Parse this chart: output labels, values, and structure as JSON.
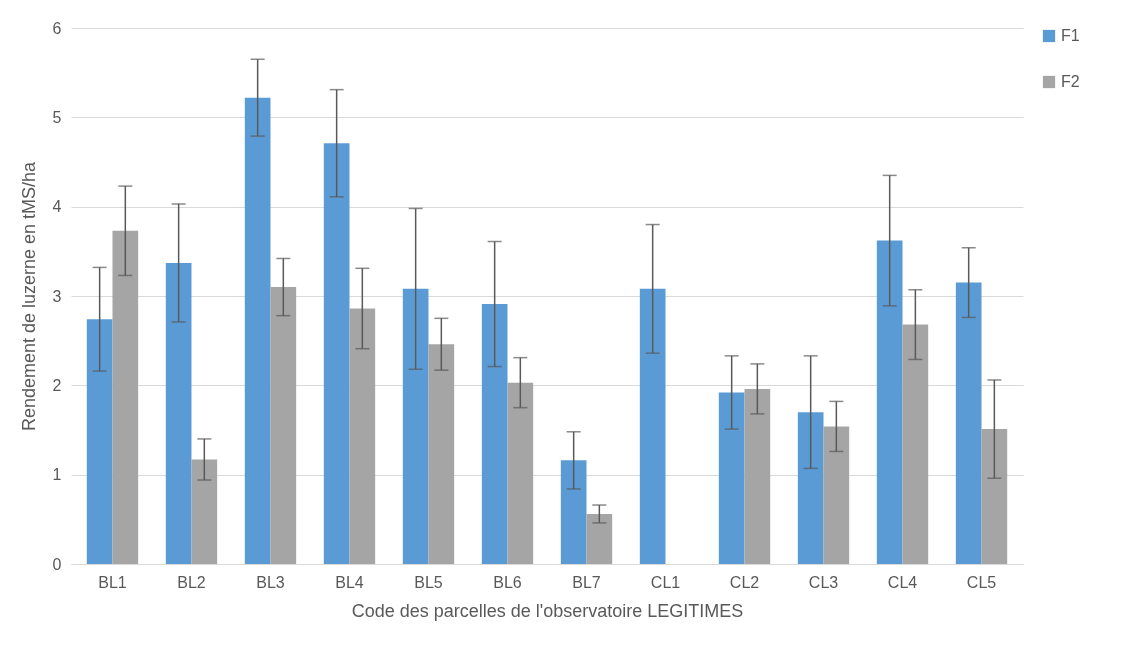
{
  "chart_data": {
    "type": "bar",
    "xlabel": "Code des parcelles de l'observatoire LEGITIMES",
    "ylabel": "Rendement de luzerne en tMS/ha",
    "categories": [
      "BL1",
      "BL2",
      "BL3",
      "BL4",
      "BL5",
      "BL6",
      "BL7",
      "CL1",
      "CL2",
      "CL3",
      "CL4",
      "CL5"
    ],
    "series": [
      {
        "name": "F1",
        "color": "#5b9bd5",
        "values": [
          2.74,
          3.37,
          5.22,
          4.71,
          3.08,
          2.91,
          1.16,
          3.08,
          1.92,
          1.7,
          3.62,
          3.15
        ],
        "errors": [
          0.58,
          0.66,
          0.43,
          0.6,
          0.9,
          0.7,
          0.32,
          0.72,
          0.41,
          0.63,
          0.73,
          0.39
        ]
      },
      {
        "name": "F2",
        "color": "#a5a5a5",
        "values": [
          3.73,
          1.17,
          3.1,
          2.86,
          2.46,
          2.03,
          0.56,
          null,
          1.96,
          1.54,
          2.68,
          1.51
        ],
        "errors": [
          0.5,
          0.23,
          0.32,
          0.45,
          0.29,
          0.28,
          0.1,
          null,
          0.28,
          0.28,
          0.39,
          0.55
        ]
      }
    ],
    "ylim": [
      0,
      6
    ],
    "yticks": [
      0,
      1,
      2,
      3,
      4,
      5,
      6
    ],
    "grid": "y",
    "legend": "right"
  }
}
